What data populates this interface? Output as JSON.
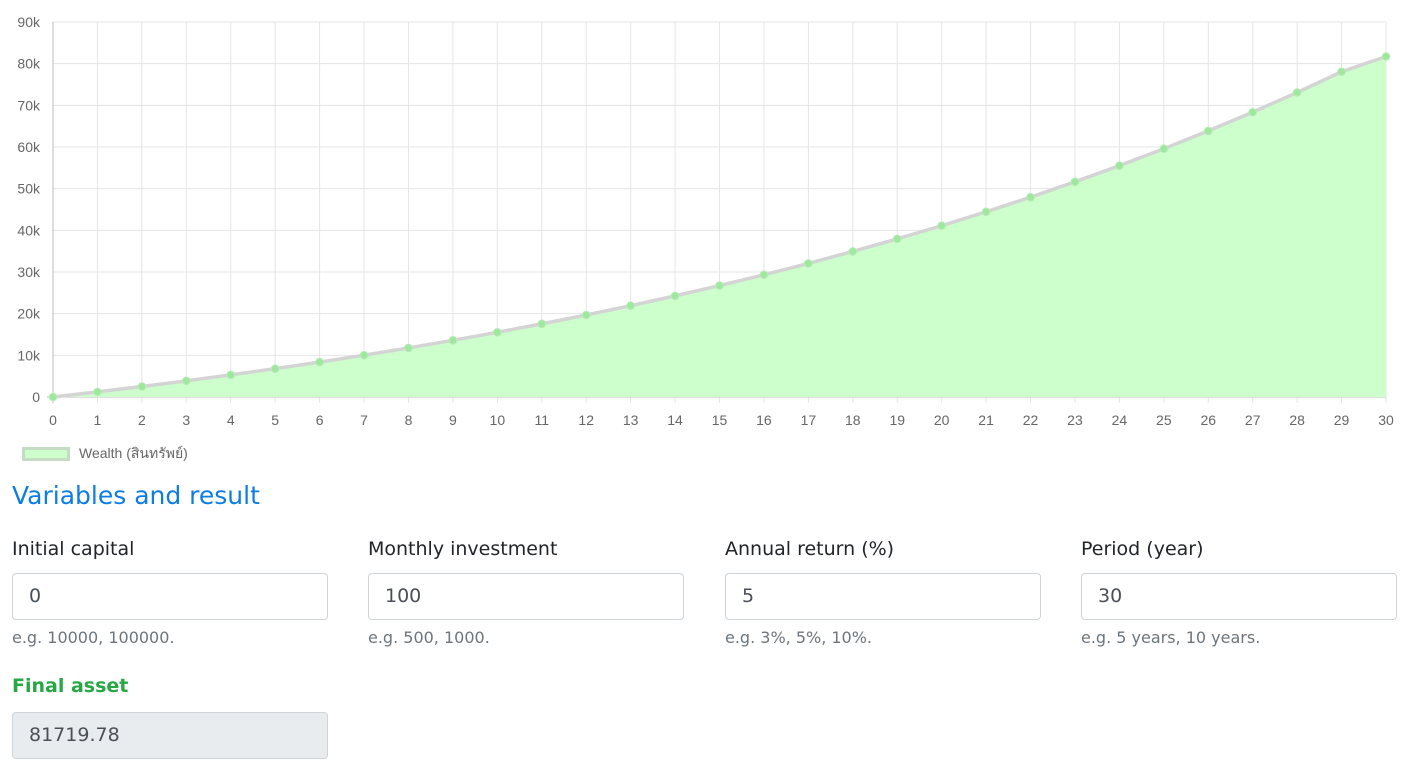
{
  "chart_data": {
    "type": "area",
    "x": [
      0,
      1,
      2,
      3,
      4,
      5,
      6,
      7,
      8,
      9,
      10,
      11,
      12,
      13,
      14,
      15,
      16,
      17,
      18,
      19,
      20,
      21,
      22,
      23,
      24,
      25,
      26,
      27,
      28,
      29,
      30
    ],
    "series": [
      {
        "name": "Wealth (สินทรัพย์)",
        "values": [
          0,
          1227.89,
          2518.61,
          3875.38,
          5301.59,
          6800.89,
          8377.04,
          10033.87,
          11775.55,
          13606.41,
          15531.0,
          17554.11,
          19680.78,
          21916.32,
          24266.32,
          26736.68,
          29333.56,
          32063.44,
          34933.11,
          37949.66,
          41120.65,
          44453.91,
          47957.83,
          51641.2,
          55513.12,
          59583.26,
          63861.81,
          68359.4,
          73087.21,
          78057.07,
          81719.78
        ]
      }
    ],
    "ylim": [
      0,
      90000
    ],
    "yticks": [
      0,
      10000,
      20000,
      30000,
      40000,
      50000,
      60000,
      70000,
      80000,
      90000
    ],
    "ytick_labels": [
      "0",
      "10k",
      "20k",
      "30k",
      "40k",
      "50k",
      "60k",
      "70k",
      "80k",
      "90k"
    ],
    "grid": true,
    "legend": "bottom-left",
    "colors": {
      "fill": "#ccffcc",
      "line": "#d4d4d4",
      "point": "#9ee89e",
      "grid": "#e5e5e5"
    }
  },
  "section": {
    "title": "Variables and result"
  },
  "fields": [
    {
      "label": "Initial capital",
      "value": "0",
      "help": "e.g. 10000, 100000."
    },
    {
      "label": "Monthly investment",
      "value": "100",
      "help": "e.g. 500, 1000."
    },
    {
      "label": "Annual return (%)",
      "value": "5",
      "help": "e.g. 3%, 5%, 10%."
    },
    {
      "label": "Period (year)",
      "value": "30",
      "help": "e.g. 5 years, 10 years."
    }
  ],
  "result": {
    "label": "Final asset",
    "value": "81719.78"
  }
}
